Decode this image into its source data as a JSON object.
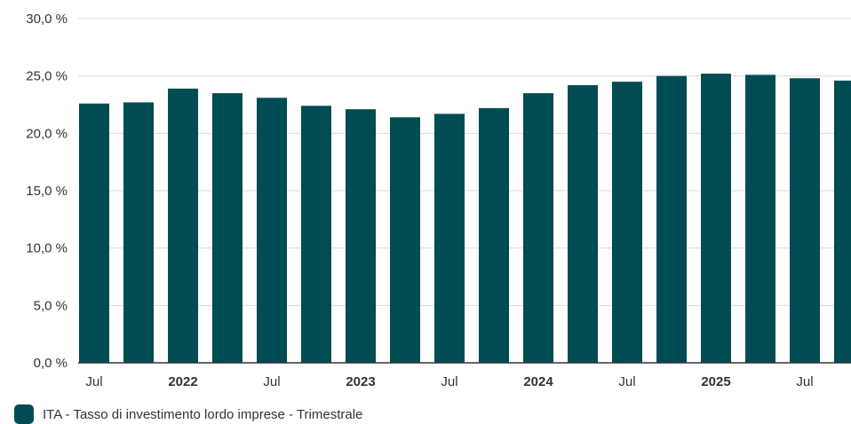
{
  "colors": {
    "bar": "#004c53",
    "grid": "#d9d9d9",
    "axis": "#333333",
    "text": "#333333"
  },
  "legend": {
    "label": "ITA - Tasso di investimento lordo imprese - Trimestrale"
  },
  "chart_data": {
    "type": "bar",
    "title": "",
    "xlabel": "",
    "ylabel": "",
    "ylim": [
      0,
      30
    ],
    "yticks": [
      "0,0 %",
      "5,0 %",
      "10,0 %",
      "15,0 %",
      "20,0 %",
      "25,0 %",
      "30,0 %"
    ],
    "ytick_values": [
      0,
      5,
      10,
      15,
      20,
      25,
      30
    ],
    "grid": true,
    "legend_position": "bottom-left",
    "x_tick_labels": [
      {
        "label": "Jul",
        "bold": false
      },
      {
        "label": "2022",
        "bold": true
      },
      {
        "label": "Jul",
        "bold": false
      },
      {
        "label": "2023",
        "bold": true
      },
      {
        "label": "Jul",
        "bold": false
      },
      {
        "label": "2024",
        "bold": true
      },
      {
        "label": "Jul",
        "bold": false
      },
      {
        "label": "2025",
        "bold": true
      },
      {
        "label": "Jul",
        "bold": false
      }
    ],
    "categories": [
      "2021 Q3",
      "2021 Q4",
      "2022 Q1",
      "2022 Q2",
      "2022 Q3",
      "2022 Q4",
      "2023 Q1",
      "2023 Q2",
      "2023 Q3",
      "2023 Q4",
      "2024 Q1",
      "2024 Q2",
      "2024 Q3",
      "2024 Q4",
      "2025 Q1",
      "2025 Q2",
      "2025 Q3",
      "2025 Q4"
    ],
    "series": [
      {
        "name": "ITA - Tasso di investimento lordo imprese - Trimestrale",
        "values": [
          22.6,
          22.7,
          23.9,
          23.5,
          23.1,
          22.4,
          22.1,
          21.4,
          21.7,
          22.2,
          23.5,
          24.2,
          24.5,
          25.0,
          25.2,
          25.1,
          24.8,
          24.6
        ]
      }
    ]
  }
}
